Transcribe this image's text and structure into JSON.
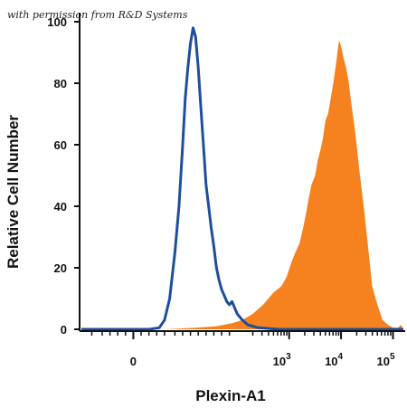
{
  "watermark": "with permission from R&D Systems",
  "chart_data": {
    "type": "area",
    "title": "",
    "xlabel": "Plexin-A1",
    "ylabel": "Relative Cell Number",
    "xscale": "biexponential",
    "xlim": [
      -1,
      5.2
    ],
    "ylim": [
      0,
      100
    ],
    "yticks": [
      0,
      20,
      40,
      60,
      80,
      100
    ],
    "xticks": [
      {
        "value": 0,
        "base": "0",
        "exp": ""
      },
      {
        "value": 3,
        "base": "10",
        "exp": "3"
      },
      {
        "value": 4,
        "base": "10",
        "exp": "4"
      },
      {
        "value": 5,
        "base": "10",
        "exp": "5"
      }
    ],
    "grid": false,
    "legend": "none",
    "series": [
      {
        "style": "filled-orange",
        "color": "#f5821f",
        "points": [
          [
            -1.0,
            0
          ],
          [
            0.6,
            0
          ],
          [
            1.2,
            0.5
          ],
          [
            1.6,
            1
          ],
          [
            1.9,
            2
          ],
          [
            2.1,
            3
          ],
          [
            2.3,
            5
          ],
          [
            2.5,
            8
          ],
          [
            2.7,
            12
          ],
          [
            2.85,
            14
          ],
          [
            2.95,
            17
          ],
          [
            3.05,
            22
          ],
          [
            3.12,
            25
          ],
          [
            3.2,
            28
          ],
          [
            3.27,
            33
          ],
          [
            3.33,
            38
          ],
          [
            3.37,
            42
          ],
          [
            3.43,
            47
          ],
          [
            3.5,
            50
          ],
          [
            3.55,
            55
          ],
          [
            3.6,
            58
          ],
          [
            3.65,
            62
          ],
          [
            3.7,
            68
          ],
          [
            3.75,
            70
          ],
          [
            3.8,
            75
          ],
          [
            3.85,
            80
          ],
          [
            3.9,
            86
          ],
          [
            3.93,
            90
          ],
          [
            3.96,
            94
          ],
          [
            4.0,
            92
          ],
          [
            4.05,
            88
          ],
          [
            4.1,
            85
          ],
          [
            4.15,
            80
          ],
          [
            4.2,
            73
          ],
          [
            4.25,
            67
          ],
          [
            4.3,
            60
          ],
          [
            4.35,
            52
          ],
          [
            4.4,
            45
          ],
          [
            4.45,
            38
          ],
          [
            4.5,
            30
          ],
          [
            4.55,
            22
          ],
          [
            4.6,
            14
          ],
          [
            4.7,
            8
          ],
          [
            4.8,
            3
          ],
          [
            4.9,
            1.5
          ],
          [
            5.0,
            0.5
          ],
          [
            5.1,
            0.5
          ],
          [
            5.15,
            1.5
          ],
          [
            5.2,
            0
          ]
        ]
      },
      {
        "style": "line-blue",
        "color": "#1f4e9c",
        "points": [
          [
            -1.0,
            0
          ],
          [
            0.3,
            0
          ],
          [
            0.5,
            0.5
          ],
          [
            0.6,
            3
          ],
          [
            0.7,
            10
          ],
          [
            0.8,
            25
          ],
          [
            0.88,
            40
          ],
          [
            0.95,
            60
          ],
          [
            1.0,
            75
          ],
          [
            1.05,
            85
          ],
          [
            1.1,
            93
          ],
          [
            1.15,
            98
          ],
          [
            1.2,
            95
          ],
          [
            1.25,
            85
          ],
          [
            1.3,
            72
          ],
          [
            1.35,
            60
          ],
          [
            1.4,
            47
          ],
          [
            1.45,
            40
          ],
          [
            1.5,
            33
          ],
          [
            1.55,
            27
          ],
          [
            1.6,
            20
          ],
          [
            1.65,
            16
          ],
          [
            1.7,
            13
          ],
          [
            1.75,
            11
          ],
          [
            1.8,
            9
          ],
          [
            1.85,
            8
          ],
          [
            1.9,
            9
          ],
          [
            1.95,
            7
          ],
          [
            2.0,
            5
          ],
          [
            2.1,
            3
          ],
          [
            2.2,
            1.5
          ],
          [
            2.4,
            0.5
          ],
          [
            2.8,
            0
          ],
          [
            5.2,
            0
          ]
        ]
      }
    ]
  }
}
